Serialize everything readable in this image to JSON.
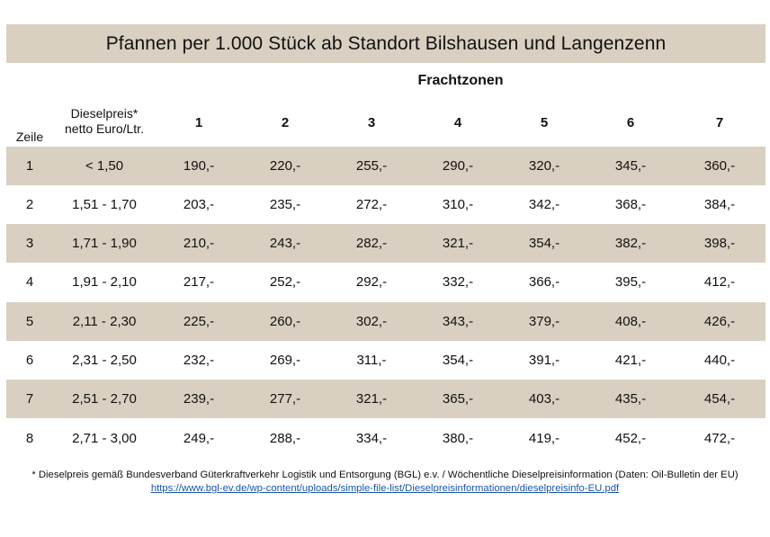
{
  "title": "Pfannen per 1.000 Stück ab Standort Bilshausen und Langenzenn",
  "zones_heading": "Frachtzonen",
  "headers": {
    "row_label": "Zeile",
    "diesel_line1": "Dieselpreis*",
    "diesel_line2": "netto Euro/Ltr.",
    "zones": [
      "1",
      "2",
      "3",
      "4",
      "5",
      "6",
      "7"
    ]
  },
  "rows": [
    {
      "zeile": "1",
      "diesel": "< 1,50",
      "prices": [
        "190,-",
        "220,-",
        "255,-",
        "290,-",
        "320,-",
        "345,-",
        "360,-"
      ]
    },
    {
      "zeile": "2",
      "diesel": "1,51 - 1,70",
      "prices": [
        "203,-",
        "235,-",
        "272,-",
        "310,-",
        "342,-",
        "368,-",
        "384,-"
      ]
    },
    {
      "zeile": "3",
      "diesel": "1,71 - 1,90",
      "prices": [
        "210,-",
        "243,-",
        "282,-",
        "321,-",
        "354,-",
        "382,-",
        "398,-"
      ]
    },
    {
      "zeile": "4",
      "diesel": "1,91 - 2,10",
      "prices": [
        "217,-",
        "252,-",
        "292,-",
        "332,-",
        "366,-",
        "395,-",
        "412,-"
      ]
    },
    {
      "zeile": "5",
      "diesel": "2,11 - 2,30",
      "prices": [
        "225,-",
        "260,-",
        "302,-",
        "343,-",
        "379,-",
        "408,-",
        "426,-"
      ]
    },
    {
      "zeile": "6",
      "diesel": "2,31 - 2,50",
      "prices": [
        "232,-",
        "269,-",
        "311,-",
        "354,-",
        "391,-",
        "421,-",
        "440,-"
      ]
    },
    {
      "zeile": "7",
      "diesel": "2,51 - 2,70",
      "prices": [
        "239,-",
        "277,-",
        "321,-",
        "365,-",
        "403,-",
        "435,-",
        "454,-"
      ]
    },
    {
      "zeile": "8",
      "diesel": "2,71 - 3,00",
      "prices": [
        "249,-",
        "288,-",
        "334,-",
        "380,-",
        "419,-",
        "452,-",
        "472,-"
      ]
    }
  ],
  "footnote": "* Dieselpreis gemäß Bundesverband Güterkraftverkehr Logistik und Entsorgung (BGL) e.v. / Wöchentliche Dieselpreisinformation (Daten: Oil-Bulletin der EU)",
  "link": "https://www.bgl-ev.de/wp-content/uploads/simple-file-list/Dieselpreisinformationen/dieselpreisinfo-EU.pdf",
  "colors": {
    "band": "#d9d0c1",
    "link": "#1a56a8",
    "text": "#111111"
  }
}
